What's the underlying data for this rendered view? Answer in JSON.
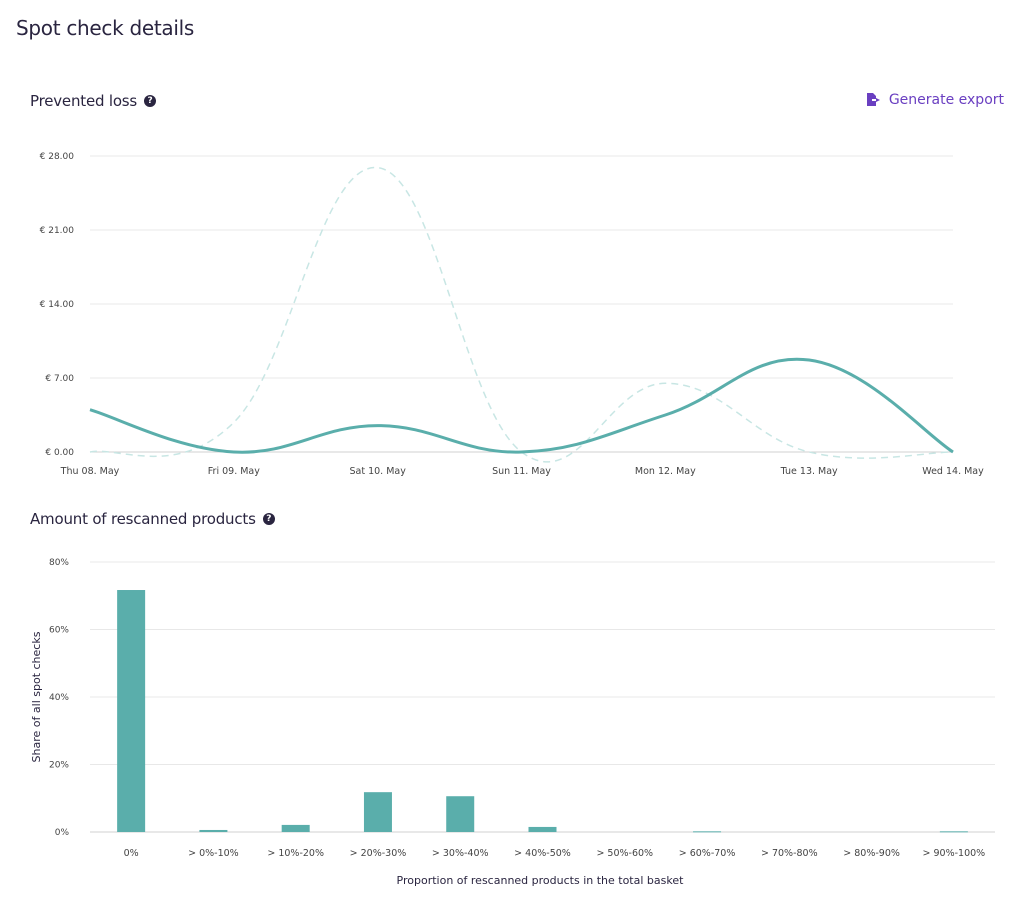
{
  "page": {
    "title": "Spot check details"
  },
  "prevented_loss": {
    "title": "Prevented loss",
    "help_icon": "question-circle-icon",
    "export_label": "Generate export",
    "export_icon": "file-export-icon"
  },
  "rescanned": {
    "title": "Amount of rescanned products",
    "help_icon": "question-circle-icon"
  },
  "colors": {
    "accent": "#5aaeab",
    "dashed": "#c8e6e4",
    "link": "#6a3fc1",
    "text": "#2a2540",
    "grid": "#e6e6e6"
  },
  "chart_data": [
    {
      "type": "line",
      "title": "Prevented loss",
      "categories": [
        "Thu 08. May",
        "Fri 09. May",
        "Sat 10. May",
        "Sun 11. May",
        "Mon 12. May",
        "Tue 13. May",
        "Wed 14. May"
      ],
      "yticks": [
        "€ 0.00",
        "€ 7.00",
        "€ 14.00",
        "€ 21.00",
        "€ 28.00"
      ],
      "ytick_values": [
        0,
        7,
        14,
        21,
        28
      ],
      "ylim": [
        0,
        28
      ],
      "grid": true,
      "series": [
        {
          "style": "solid",
          "color": "#5aaeab",
          "values": [
            4.0,
            0.0,
            2.5,
            0.0,
            3.5,
            8.7,
            0.0
          ]
        },
        {
          "style": "dashed",
          "color": "#c8e6e4",
          "values": [
            0.0,
            2.8,
            26.9,
            0.0,
            6.5,
            0.0,
            0.0
          ]
        }
      ]
    },
    {
      "type": "bar",
      "title": "Amount of rescanned products",
      "xlabel": "Proportion of rescanned products in the total basket",
      "ylabel": "Share of all spot checks",
      "categories": [
        "0%",
        "> 0%-10%",
        "> 10%-20%",
        "> 20%-30%",
        "> 30%-40%",
        "> 40%-50%",
        "> 50%-60%",
        "> 60%-70%",
        "> 70%-80%",
        "> 80%-90%",
        "> 90%-100%"
      ],
      "values": [
        71.7,
        0.6,
        2.1,
        11.8,
        10.6,
        1.5,
        0,
        0.2,
        0,
        0,
        0.2
      ],
      "yticks": [
        "0%",
        "20%",
        "40%",
        "60%",
        "80%"
      ],
      "ytick_values": [
        0,
        20,
        40,
        60,
        80
      ],
      "ylim": [
        0,
        80
      ],
      "grid": true,
      "color": "#5aaeab"
    }
  ]
}
